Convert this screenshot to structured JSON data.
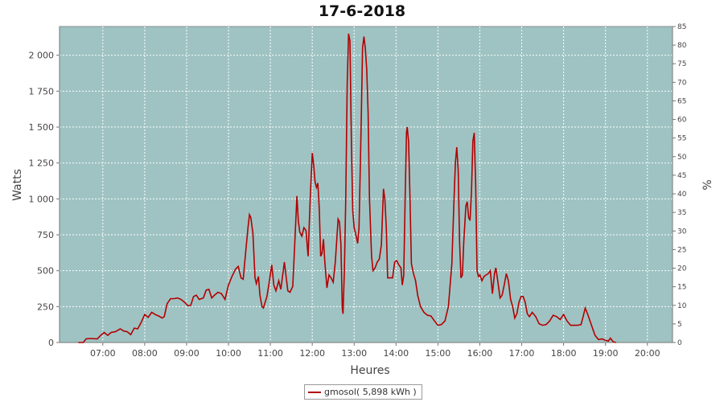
{
  "chart_data": {
    "type": "line",
    "title": "17-6-2018",
    "xlabel": "Heures",
    "ylabel": "Watts",
    "y2label": "%",
    "x_ticks": [
      "07:00",
      "08:00",
      "09:00",
      "10:00",
      "11:00",
      "12:00",
      "13:00",
      "14:00",
      "15:00",
      "16:00",
      "17:00",
      "18:00",
      "19:00",
      "20:00"
    ],
    "y_ticks": [
      0,
      250,
      500,
      750,
      1000,
      1250,
      1500,
      1750,
      2000
    ],
    "y_tick_labels": [
      "0",
      "250",
      "500",
      "750",
      "1 000",
      "1 250",
      "1 500",
      "1 750",
      "2 000"
    ],
    "y2_ticks": [
      0,
      5,
      10,
      15,
      20,
      25,
      30,
      35,
      40,
      45,
      50,
      55,
      60,
      65,
      70,
      75,
      80,
      85
    ],
    "xlim": [
      "05:58",
      "20:36"
    ],
    "ylim": [
      0,
      2200
    ],
    "y2lim": [
      0,
      85
    ],
    "grid": true,
    "legend_position": "bottom-center",
    "background_color": "#9fc3c3",
    "series": [
      {
        "name": "gmosol( 5,898 kWh )",
        "color": "#b30000",
        "points": [
          [
            "06:25",
            0
          ],
          [
            "06:32",
            0
          ],
          [
            "06:36",
            25
          ],
          [
            "06:42",
            28
          ],
          [
            "06:52",
            25
          ],
          [
            "06:57",
            50
          ],
          [
            "07:02",
            70
          ],
          [
            "07:07",
            50
          ],
          [
            "07:12",
            70
          ],
          [
            "07:18",
            75
          ],
          [
            "07:25",
            95
          ],
          [
            "07:30",
            80
          ],
          [
            "07:35",
            75
          ],
          [
            "07:40",
            55
          ],
          [
            "07:45",
            100
          ],
          [
            "07:50",
            95
          ],
          [
            "07:55",
            140
          ],
          [
            "08:00",
            195
          ],
          [
            "08:05",
            175
          ],
          [
            "08:10",
            210
          ],
          [
            "08:15",
            195
          ],
          [
            "08:20",
            185
          ],
          [
            "08:25",
            170
          ],
          [
            "08:28",
            180
          ],
          [
            "08:32",
            270
          ],
          [
            "08:37",
            305
          ],
          [
            "08:42",
            305
          ],
          [
            "08:47",
            310
          ],
          [
            "08:52",
            300
          ],
          [
            "08:57",
            280
          ],
          [
            "09:02",
            255
          ],
          [
            "09:06",
            260
          ],
          [
            "09:10",
            320
          ],
          [
            "09:14",
            330
          ],
          [
            "09:18",
            300
          ],
          [
            "09:24",
            310
          ],
          [
            "09:28",
            365
          ],
          [
            "09:32",
            370
          ],
          [
            "09:36",
            310
          ],
          [
            "09:40",
            330
          ],
          [
            "09:45",
            350
          ],
          [
            "09:50",
            340
          ],
          [
            "09:55",
            300
          ],
          [
            "10:00",
            400
          ],
          [
            "10:05",
            460
          ],
          [
            "10:10",
            510
          ],
          [
            "10:14",
            530
          ],
          [
            "10:18",
            450
          ],
          [
            "10:21",
            440
          ],
          [
            "10:24",
            600
          ],
          [
            "10:28",
            800
          ],
          [
            "10:30",
            890
          ],
          [
            "10:32",
            870
          ],
          [
            "10:35",
            760
          ],
          [
            "10:38",
            450
          ],
          [
            "10:40",
            410
          ],
          [
            "10:43",
            460
          ],
          [
            "10:45",
            330
          ],
          [
            "10:48",
            250
          ],
          [
            "10:50",
            240
          ],
          [
            "10:55",
            320
          ],
          [
            "10:58",
            410
          ],
          [
            "11:02",
            540
          ],
          [
            "11:05",
            400
          ],
          [
            "11:08",
            360
          ],
          [
            "11:12",
            430
          ],
          [
            "11:15",
            370
          ],
          [
            "11:20",
            560
          ],
          [
            "11:25",
            360
          ],
          [
            "11:28",
            350
          ],
          [
            "11:32",
            390
          ],
          [
            "11:35",
            700
          ],
          [
            "11:38",
            1020
          ],
          [
            "11:40",
            850
          ],
          [
            "11:42",
            770
          ],
          [
            "11:45",
            740
          ],
          [
            "11:48",
            800
          ],
          [
            "11:51",
            780
          ],
          [
            "11:54",
            600
          ],
          [
            "11:57",
            1000
          ],
          [
            "12:00",
            1320
          ],
          [
            "12:02",
            1240
          ],
          [
            "12:04",
            1120
          ],
          [
            "12:06",
            1080
          ],
          [
            "12:08",
            1110
          ],
          [
            "12:10",
            930
          ],
          [
            "12:12",
            600
          ],
          [
            "12:14",
            620
          ],
          [
            "12:16",
            720
          ],
          [
            "12:18",
            560
          ],
          [
            "12:21",
            380
          ],
          [
            "12:24",
            470
          ],
          [
            "12:27",
            450
          ],
          [
            "12:30",
            420
          ],
          [
            "12:33",
            560
          ],
          [
            "12:37",
            860
          ],
          [
            "12:39",
            840
          ],
          [
            "12:41",
            680
          ],
          [
            "12:43",
            240
          ],
          [
            "12:44",
            200
          ],
          [
            "12:46",
            500
          ],
          [
            "12:48",
            1000
          ],
          [
            "12:50",
            1800
          ],
          [
            "12:52",
            2150
          ],
          [
            "12:54",
            2100
          ],
          [
            "12:56",
            1400
          ],
          [
            "12:58",
            920
          ],
          [
            "13:00",
            800
          ],
          [
            "13:02",
            760
          ],
          [
            "13:05",
            690
          ],
          [
            "13:07",
            800
          ],
          [
            "13:10",
            1500
          ],
          [
            "13:12",
            2050
          ],
          [
            "13:14",
            2130
          ],
          [
            "13:16",
            2050
          ],
          [
            "13:18",
            1900
          ],
          [
            "13:20",
            1600
          ],
          [
            "13:22",
            1000
          ],
          [
            "13:25",
            600
          ],
          [
            "13:27",
            500
          ],
          [
            "13:30",
            520
          ],
          [
            "13:33",
            560
          ],
          [
            "13:36",
            580
          ],
          [
            "13:39",
            680
          ],
          [
            "13:42",
            1070
          ],
          [
            "13:44",
            1000
          ],
          [
            "13:46",
            800
          ],
          [
            "13:48",
            450
          ],
          [
            "13:51",
            450
          ],
          [
            "13:55",
            450
          ],
          [
            "13:58",
            560
          ],
          [
            "14:01",
            570
          ],
          [
            "14:04",
            540
          ],
          [
            "14:07",
            520
          ],
          [
            "14:09",
            400
          ],
          [
            "14:11",
            470
          ],
          [
            "14:13",
            1000
          ],
          [
            "14:15",
            1460
          ],
          [
            "14:16",
            1500
          ],
          [
            "14:18",
            1400
          ],
          [
            "14:20",
            1000
          ],
          [
            "14:22",
            550
          ],
          [
            "14:25",
            480
          ],
          [
            "14:28",
            430
          ],
          [
            "14:31",
            330
          ],
          [
            "14:35",
            250
          ],
          [
            "14:40",
            210
          ],
          [
            "14:45",
            190
          ],
          [
            "14:50",
            185
          ],
          [
            "14:55",
            150
          ],
          [
            "15:00",
            120
          ],
          [
            "15:05",
            125
          ],
          [
            "15:10",
            150
          ],
          [
            "15:15",
            250
          ],
          [
            "15:20",
            550
          ],
          [
            "15:23",
            1000
          ],
          [
            "15:25",
            1250
          ],
          [
            "15:27",
            1360
          ],
          [
            "15:29",
            1200
          ],
          [
            "15:31",
            700
          ],
          [
            "15:33",
            450
          ],
          [
            "15:35",
            470
          ],
          [
            "15:37",
            700
          ],
          [
            "15:40",
            950
          ],
          [
            "15:42",
            980
          ],
          [
            "15:44",
            870
          ],
          [
            "15:46",
            850
          ],
          [
            "15:48",
            1050
          ],
          [
            "15:50",
            1400
          ],
          [
            "15:52",
            1460
          ],
          [
            "15:54",
            1100
          ],
          [
            "15:56",
            500
          ],
          [
            "15:58",
            460
          ],
          [
            "16:00",
            470
          ],
          [
            "16:03",
            430
          ],
          [
            "16:06",
            460
          ],
          [
            "16:09",
            470
          ],
          [
            "16:12",
            480
          ],
          [
            "16:15",
            500
          ],
          [
            "16:18",
            340
          ],
          [
            "16:21",
            480
          ],
          [
            "16:23",
            520
          ],
          [
            "16:26",
            420
          ],
          [
            "16:29",
            310
          ],
          [
            "16:32",
            330
          ],
          [
            "16:35",
            400
          ],
          [
            "16:38",
            480
          ],
          [
            "16:41",
            430
          ],
          [
            "16:44",
            300
          ],
          [
            "16:47",
            250
          ],
          [
            "16:50",
            170
          ],
          [
            "16:53",
            200
          ],
          [
            "16:56",
            280
          ],
          [
            "16:59",
            320
          ],
          [
            "17:02",
            320
          ],
          [
            "17:05",
            280
          ],
          [
            "17:08",
            200
          ],
          [
            "17:11",
            180
          ],
          [
            "17:15",
            210
          ],
          [
            "17:20",
            180
          ],
          [
            "17:25",
            130
          ],
          [
            "17:30",
            120
          ],
          [
            "17:35",
            125
          ],
          [
            "17:40",
            150
          ],
          [
            "17:45",
            190
          ],
          [
            "17:50",
            180
          ],
          [
            "17:55",
            160
          ],
          [
            "18:00",
            195
          ],
          [
            "18:05",
            150
          ],
          [
            "18:10",
            120
          ],
          [
            "18:15",
            120
          ],
          [
            "18:20",
            120
          ],
          [
            "18:25",
            125
          ],
          [
            "18:28",
            180
          ],
          [
            "18:31",
            240
          ],
          [
            "18:35",
            190
          ],
          [
            "18:40",
            120
          ],
          [
            "18:45",
            50
          ],
          [
            "18:50",
            20
          ],
          [
            "18:55",
            25
          ],
          [
            "19:00",
            15
          ],
          [
            "19:04",
            10
          ],
          [
            "19:07",
            30
          ],
          [
            "19:11",
            5
          ],
          [
            "19:15",
            0
          ]
        ]
      }
    ]
  }
}
